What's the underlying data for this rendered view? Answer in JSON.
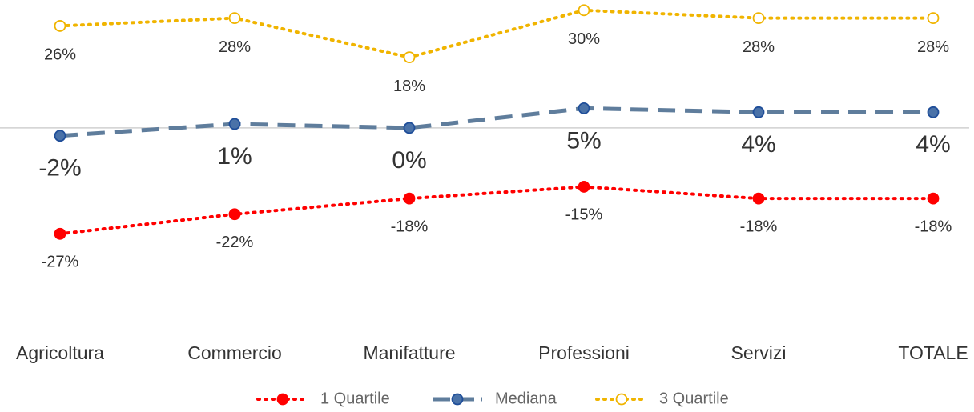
{
  "chart_data": {
    "type": "line",
    "categories": [
      "Agricoltura",
      "Commercio",
      "Manifatture",
      "Professioni",
      "Servizi",
      "TOTALE"
    ],
    "ylim": [
      -30,
      32
    ],
    "legend": "bottom",
    "series": [
      {
        "name": "1 Quartile",
        "color": "#ff0000",
        "dash": "dotted",
        "marker": "filled",
        "values": [
          -27,
          -22,
          -18,
          -15,
          -18,
          -18
        ],
        "value_labels": [
          "-27%",
          "-22%",
          "-18%",
          "-15%",
          "-18%",
          "-18%"
        ]
      },
      {
        "name": "Mediana",
        "color": "#5f7d9c",
        "marker_color": "#4a72a8",
        "dash": "dashed",
        "marker": "filled",
        "values": [
          -2,
          1,
          0,
          5,
          4,
          4
        ],
        "value_labels": [
          "-2%",
          "1%",
          "0%",
          "5%",
          "4%",
          "4%"
        ]
      },
      {
        "name": "3 Quartile",
        "color": "#f0b400",
        "dash": "dotted",
        "marker": "open",
        "values": [
          26,
          28,
          18,
          30,
          28,
          28
        ],
        "value_labels": [
          "26%",
          "28%",
          "18%",
          "30%",
          "28%",
          "28%"
        ]
      }
    ]
  }
}
